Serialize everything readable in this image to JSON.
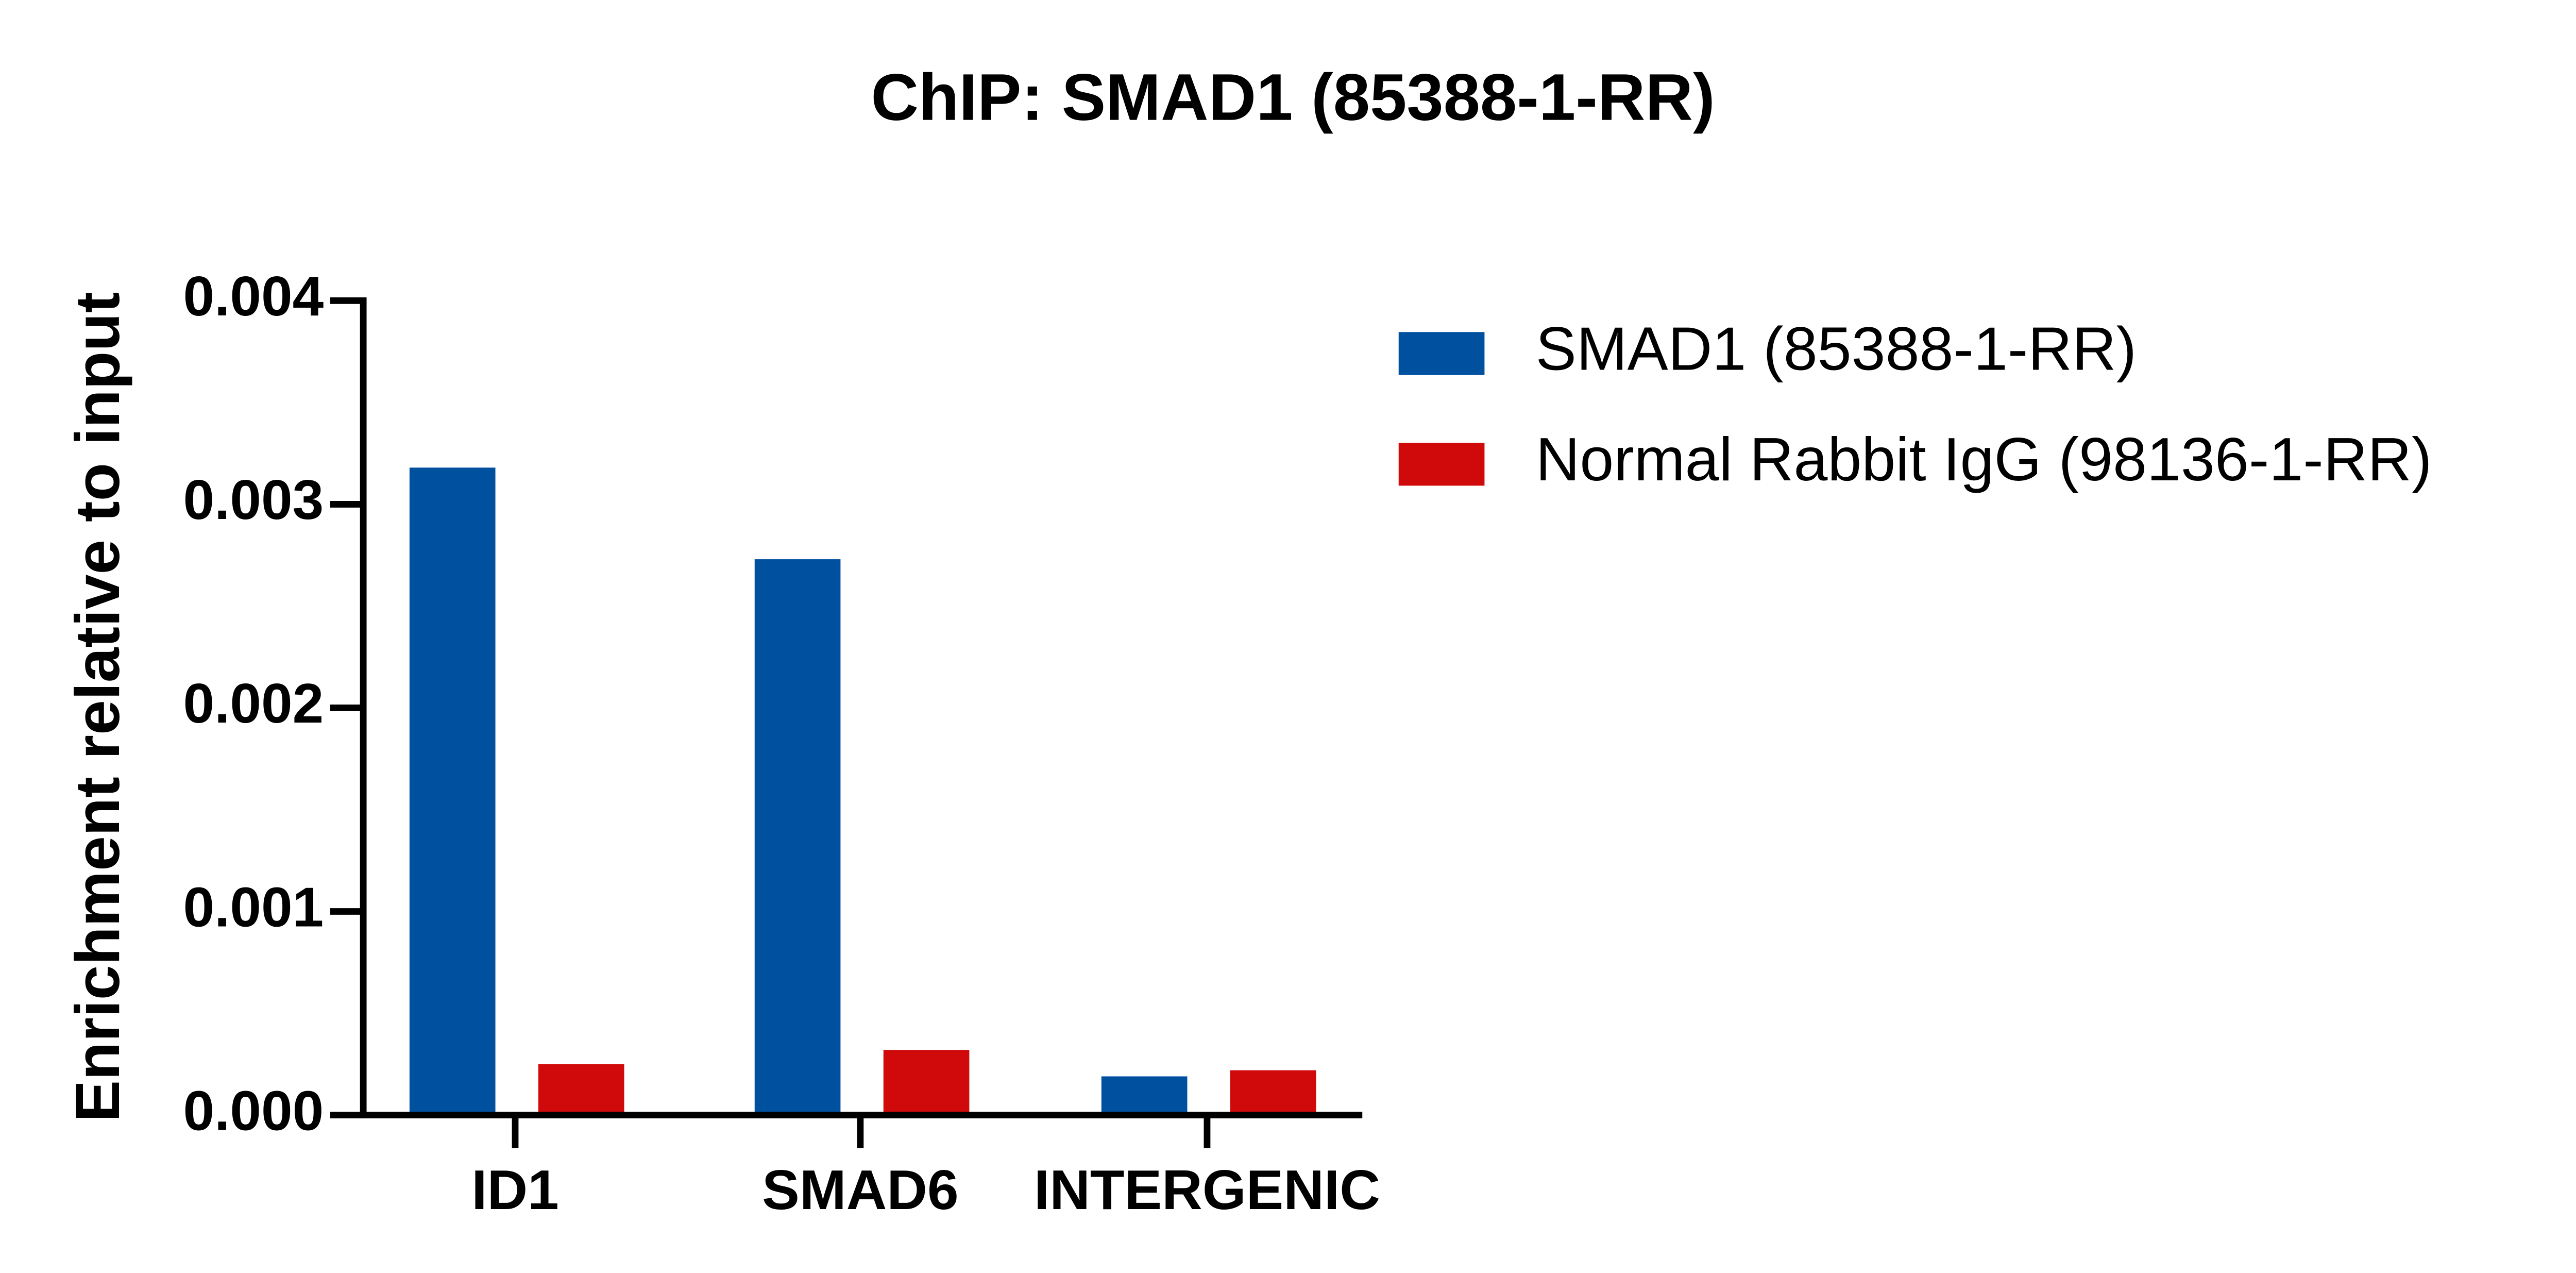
{
  "chart_data": {
    "type": "bar",
    "title": "ChIP: SMAD1 (85388-1-RR)",
    "y_label": "Enrichment relative to input",
    "categories": [
      "ID1",
      "SMAD6",
      "INTERGENIC"
    ],
    "series": [
      {
        "name": "SMAD1 (85388-1-RR)",
        "color": "#0050a0",
        "values": [
          0.00318,
          0.00273,
          0.00019
        ]
      },
      {
        "name": "Normal Rabbit IgG (98136-1-RR)",
        "color": "#d00a0a",
        "values": [
          0.00025,
          0.00032,
          0.00022
        ]
      }
    ],
    "ylim": [
      0,
      0.004
    ],
    "yticks": [
      {
        "value": 0,
        "label": "0.000"
      },
      0.001,
      0.002,
      0.003,
      0.004
    ],
    "legend": "right",
    "grid": false
  }
}
